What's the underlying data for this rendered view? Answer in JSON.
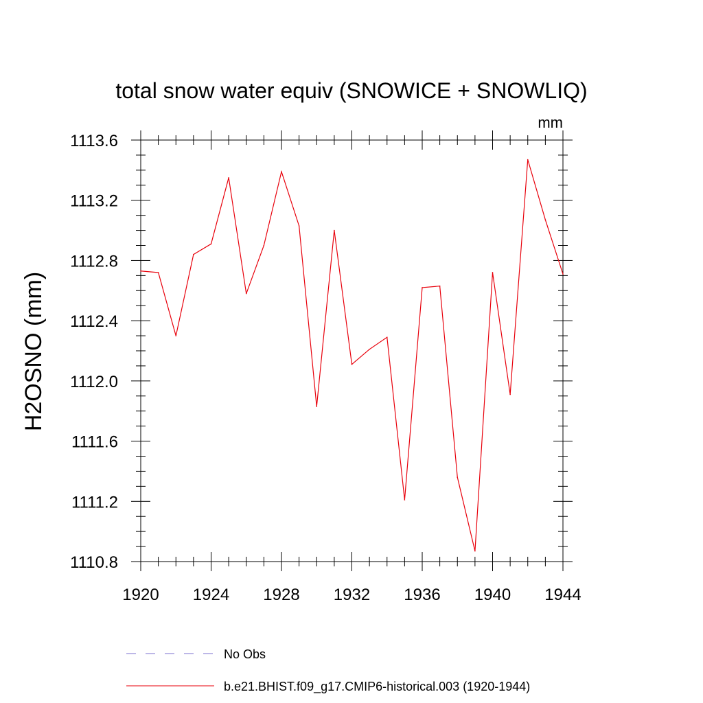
{
  "chart_data": {
    "type": "line",
    "title": "total snow water equiv (SNOWICE + SNOWLIQ)",
    "units_label": "mm",
    "xlabel": "",
    "ylabel": "H2OSNO  (mm)",
    "xlim": [
      1920,
      1944
    ],
    "ylim": [
      1110.8,
      1113.6
    ],
    "x_ticks": [
      1920,
      1924,
      1928,
      1932,
      1936,
      1940,
      1944
    ],
    "y_ticks": [
      "1110.8",
      "1111.2",
      "1111.6",
      "1112.0",
      "1112.4",
      "1112.8",
      "1113.2",
      "1113.6"
    ],
    "x": [
      1920,
      1921,
      1922,
      1923,
      1924,
      1925,
      1926,
      1927,
      1928,
      1929,
      1930,
      1931,
      1932,
      1933,
      1934,
      1935,
      1936,
      1937,
      1938,
      1939,
      1940,
      1941,
      1942,
      1943,
      1944
    ],
    "series": [
      {
        "name": "b.e21.BHIST.f09_g17.CMIP6-historical.003 (1920-1944)",
        "color": "#e8000b",
        "dash": "solid",
        "values": [
          1112.73,
          1112.72,
          1112.3,
          1112.84,
          1112.91,
          1113.35,
          1112.58,
          1112.9,
          1113.39,
          1113.03,
          1111.83,
          1113.0,
          1112.11,
          1112.21,
          1112.29,
          1111.21,
          1112.62,
          1112.63,
          1111.36,
          1110.87,
          1112.72,
          1111.91,
          1113.47,
          1113.07,
          1112.71
        ]
      }
    ],
    "legend": [
      {
        "label": "No Obs",
        "color": "#7b6fcf",
        "dash": "dashed"
      },
      {
        "label": "b.e21.BHIST.f09_g17.CMIP6-historical.003 (1920-1944)",
        "color": "#e8000b",
        "dash": "solid"
      }
    ]
  }
}
